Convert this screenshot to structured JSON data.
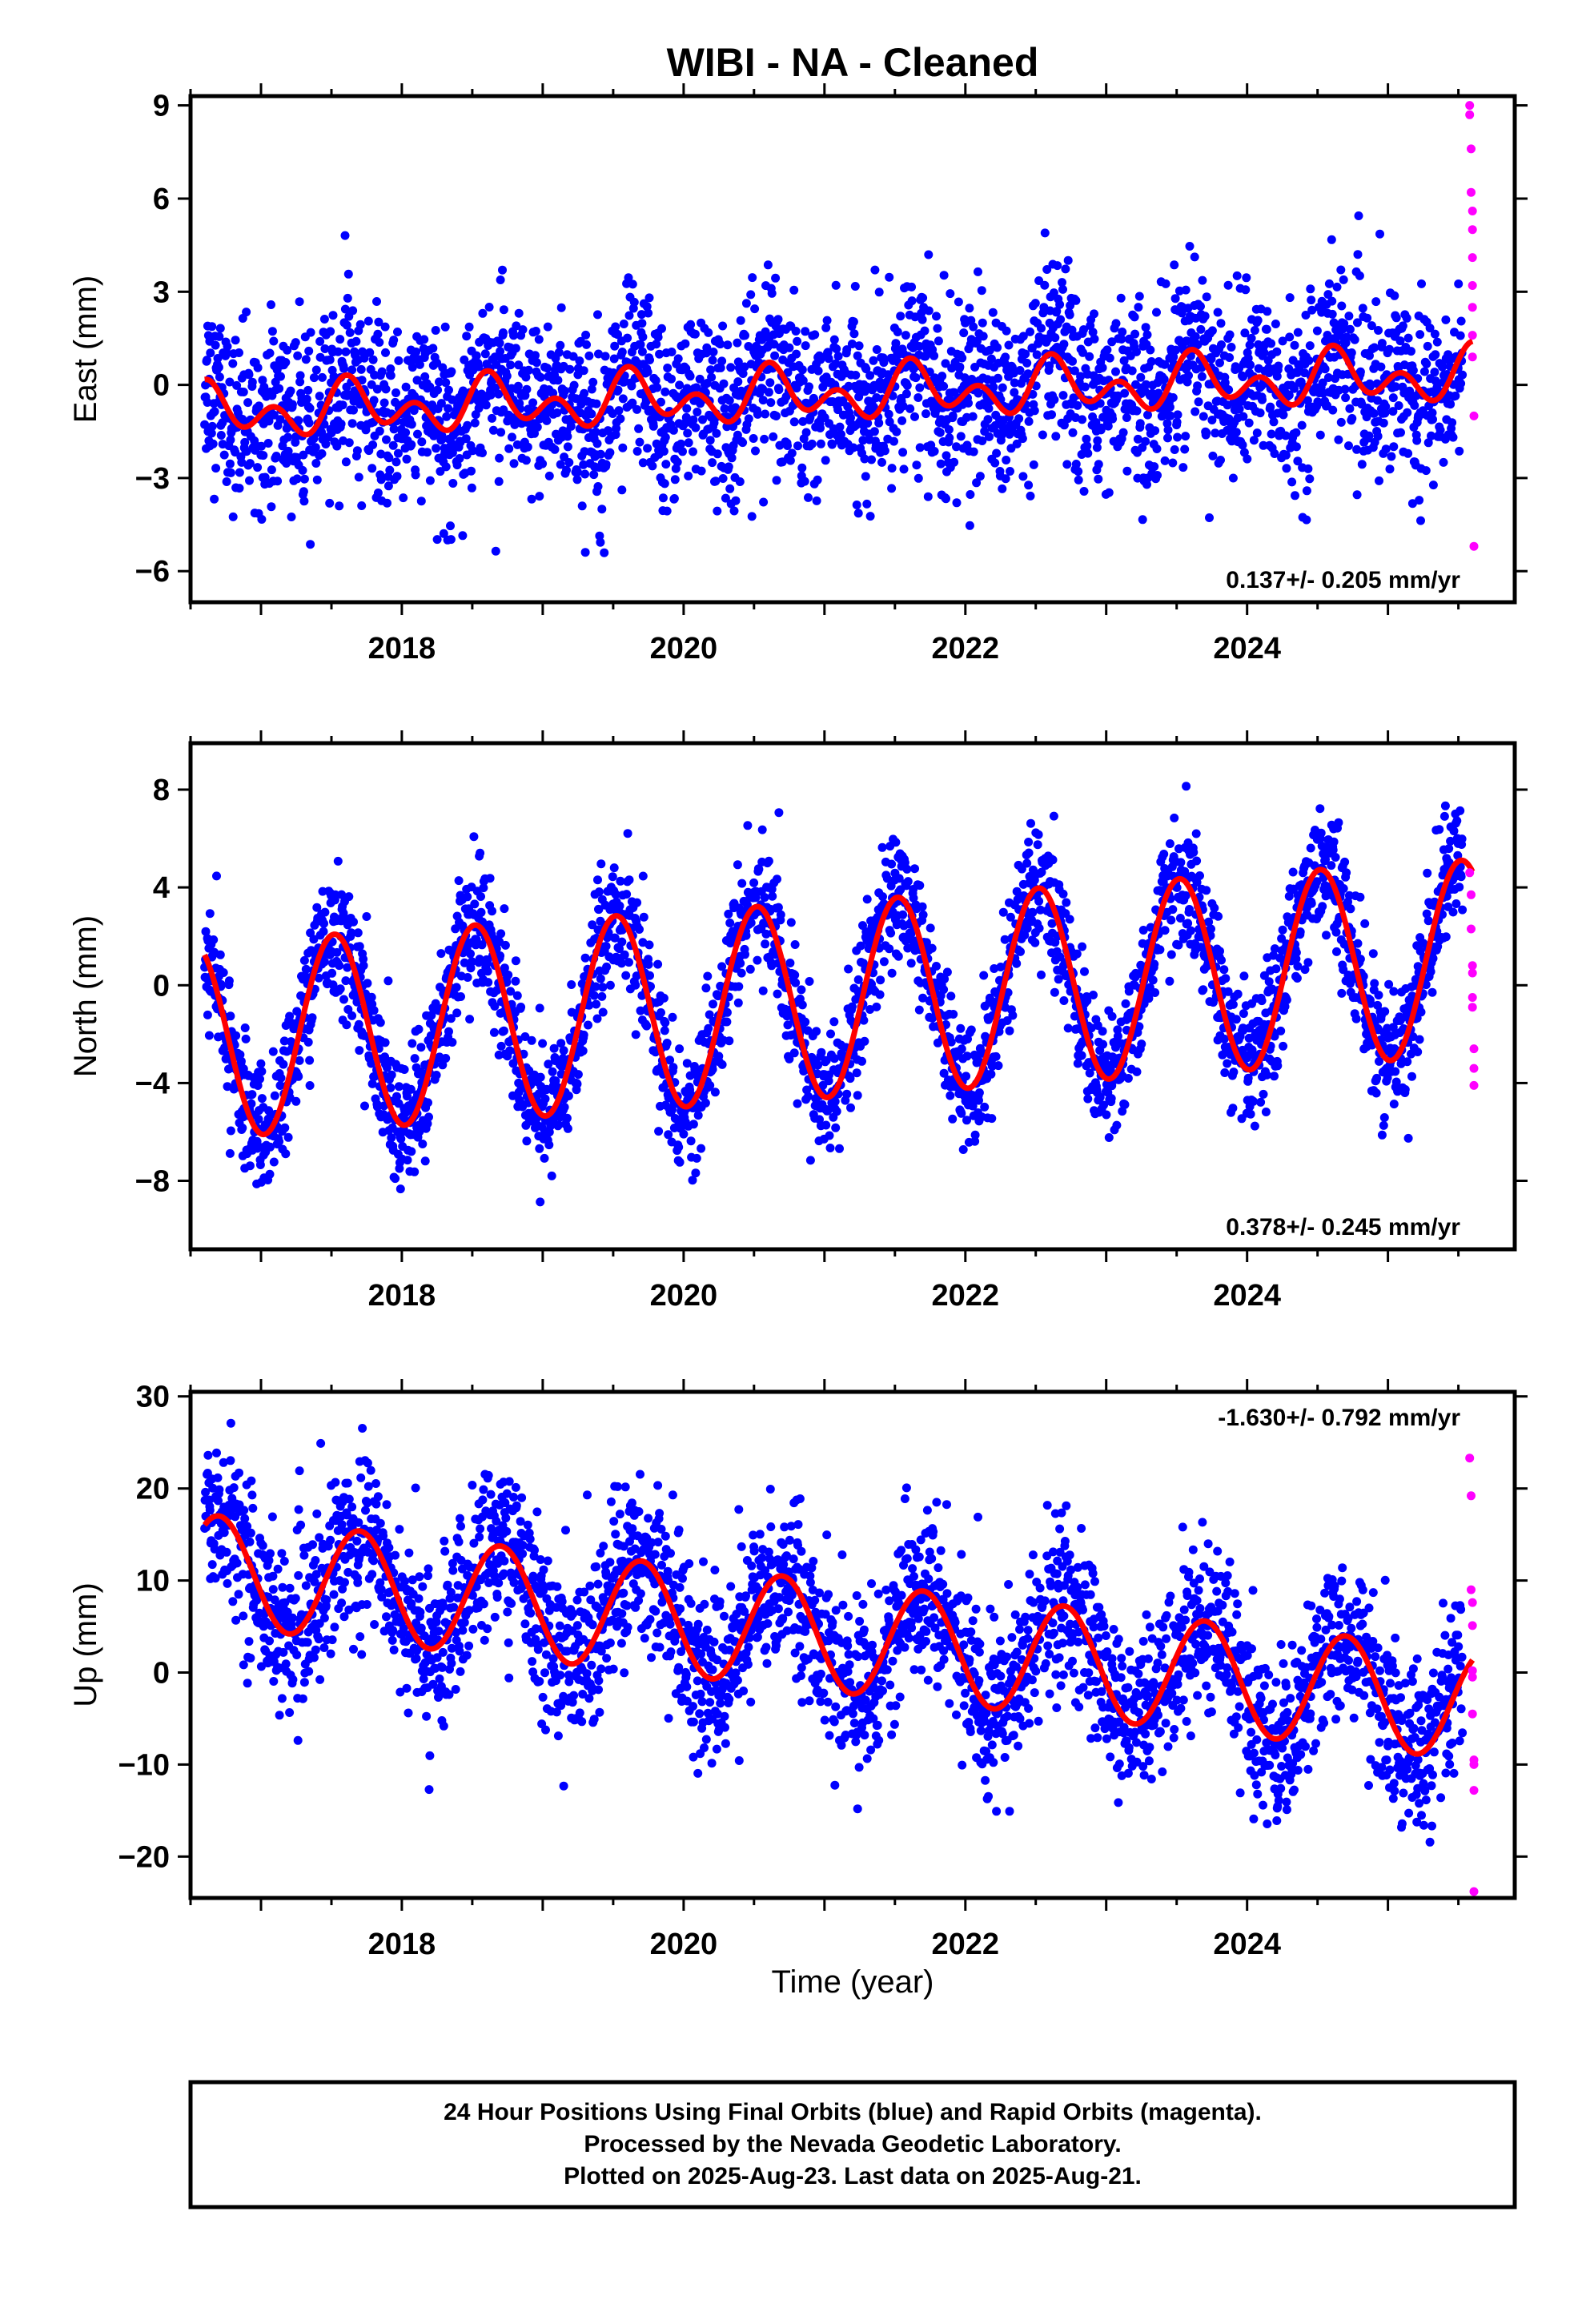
{
  "title": "WIBI  - NA - Cleaned",
  "xlabel": "Time (year)",
  "footer": {
    "line1": "24 Hour Positions Using Final Orbits (blue) and Rapid Orbits (magenta).",
    "line2": "Processed by the Nevada Geodetic Laboratory.",
    "line3": "Plotted on 2025-Aug-23. Last data on 2025-Aug-21."
  },
  "colors": {
    "final": "#0000ff",
    "rapid": "#ff00ff",
    "model": "#ff0000",
    "axes": "#000000"
  },
  "chart_data": [
    {
      "type": "scatter",
      "ylabel": "East (mm)",
      "rate": "0.137+/- 0.205 mm/yr",
      "rate_position": "bottom-right",
      "xlim": [
        2016.5,
        2025.9
      ],
      "ylim": [
        -7,
        9.3
      ],
      "xticks": [
        2018,
        2020,
        2022,
        2024
      ],
      "yticks": [
        -6,
        -3,
        0,
        3,
        6,
        9
      ],
      "series": [
        {
          "name": "Final Orbits",
          "x_range": [
            2016.6,
            2025.53
          ],
          "trend_mm_per_yr": 0.137,
          "offset_mm": -0.3,
          "annual_amp": 0.5,
          "annual_phase_peak": 0.65,
          "semiannual_amp": 0.6,
          "semiannual_phase_peak": 0.1,
          "scatter_sd": 1.4
        },
        {
          "name": "Rapid Orbits",
          "x": [
            2025.58,
            2025.58,
            2025.59,
            2025.59,
            2025.6,
            2025.6,
            2025.6,
            2025.6,
            2025.6,
            2025.6,
            2025.6,
            2025.61,
            2025.61
          ],
          "y": [
            9.0,
            8.7,
            7.6,
            6.2,
            5.6,
            5.0,
            4.1,
            3.2,
            2.5,
            1.6,
            0.9,
            -1.0,
            -5.2
          ]
        },
        {
          "name": "Model",
          "x_range": [
            2016.6,
            2025.6
          ],
          "trend_mm_per_yr": 0.137,
          "offset_mm": -0.3,
          "annual_amp": 0.5,
          "annual_phase_peak": 0.65,
          "semiannual_amp": 0.6,
          "semiannual_phase_peak": 0.1
        }
      ]
    },
    {
      "type": "scatter",
      "ylabel": "North (mm)",
      "rate": "0.378+/- 0.245 mm/yr",
      "rate_position": "bottom-right",
      "xlim": [
        2016.5,
        2025.9
      ],
      "ylim": [
        -10.8,
        9.9
      ],
      "xticks": [
        2018,
        2020,
        2022,
        2024
      ],
      "yticks": [
        -8,
        -4,
        0,
        4,
        8
      ],
      "series": [
        {
          "name": "Final Orbits",
          "x_range": [
            2016.6,
            2025.53
          ],
          "trend_mm_per_yr": 0.378,
          "offset_mm": -0.6,
          "annual_amp": 4.0,
          "annual_phase_peak": 0.52,
          "semiannual_amp": 0.0,
          "semiannual_phase_peak": 0.0,
          "scatter_sd": 1.3
        },
        {
          "name": "Rapid Orbits",
          "x": [
            2025.58,
            2025.59,
            2025.59,
            2025.6,
            2025.6,
            2025.6,
            2025.6,
            2025.61,
            2025.61,
            2025.61
          ],
          "y": [
            4.6,
            3.7,
            2.3,
            0.8,
            0.5,
            -0.5,
            -0.9,
            -2.6,
            -3.4,
            -4.1
          ]
        },
        {
          "name": "Model",
          "x_range": [
            2016.6,
            2025.6
          ],
          "trend_mm_per_yr": 0.378,
          "offset_mm": -0.6,
          "annual_amp": 4.0,
          "annual_phase_peak": 0.52,
          "semiannual_amp": 0.0,
          "semiannual_phase_peak": 0.0
        }
      ]
    },
    {
      "type": "scatter",
      "ylabel": "Up (mm)",
      "rate": "-1.630+/- 0.792 mm/yr",
      "rate_position": "top-right",
      "xlim": [
        2016.5,
        2025.9
      ],
      "ylim": [
        -24.5,
        30.5
      ],
      "xticks": [
        2018,
        2020,
        2022,
        2024
      ],
      "yticks": [
        -20,
        -10,
        0,
        10,
        20,
        30
      ],
      "series": [
        {
          "name": "Final Orbits",
          "x_range": [
            2016.6,
            2025.53
          ],
          "trend_mm_per_yr": -1.63,
          "offset_mm": 4.0,
          "annual_amp": 6.0,
          "annual_phase_peak": 0.7,
          "semiannual_amp": 0.0,
          "semiannual_phase_peak": 0.0,
          "scatter_sd": 4.5
        },
        {
          "name": "Rapid Orbits",
          "x": [
            2025.58,
            2025.59,
            2025.59,
            2025.6,
            2025.6,
            2025.6,
            2025.6,
            2025.6,
            2025.61,
            2025.61,
            2025.61,
            2025.61
          ],
          "y": [
            23.3,
            19.2,
            9.0,
            7.6,
            5.1,
            0.2,
            -0.5,
            -4.5,
            -9.5,
            -10.0,
            -12.8,
            -23.8
          ]
        },
        {
          "name": "Model",
          "x_range": [
            2016.6,
            2025.6
          ],
          "trend_mm_per_yr": -1.63,
          "offset_mm": 4.0,
          "annual_amp": 6.0,
          "annual_phase_peak": 0.7,
          "semiannual_amp": 0.0,
          "semiannual_phase_peak": 0.0
        }
      ]
    }
  ]
}
